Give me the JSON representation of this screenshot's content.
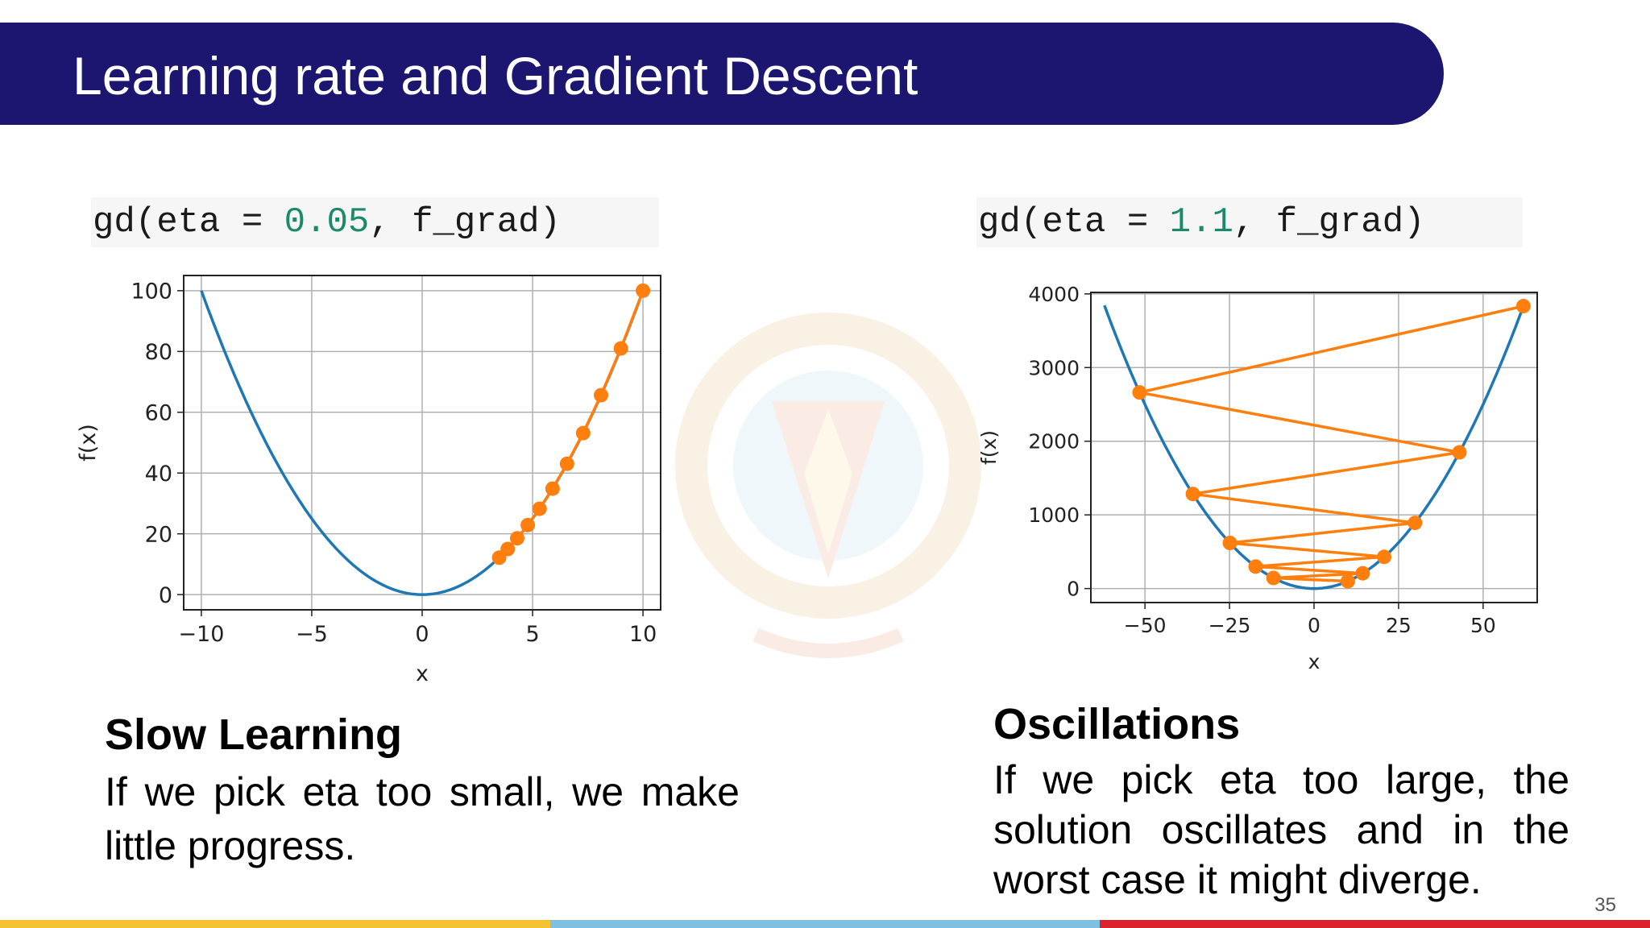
{
  "slide": {
    "title": "Learning rate and Gradient Descent",
    "page_number": "35",
    "left": {
      "code_prefix": "gd(eta = ",
      "code_value": "0.05",
      "code_suffix": ", f_grad)",
      "heading": "Slow Learning",
      "body": "If we pick eta too small, we make little progress."
    },
    "right": {
      "code_prefix": "gd(eta = ",
      "code_value": "1.1",
      "code_suffix": ", f_grad)",
      "heading": "Oscillations",
      "body": "If we pick eta too large, the solution oscillates and in the worst case it might diverge."
    },
    "colors": {
      "title_bar": "#1d1670",
      "curve": "#1f77b4",
      "path": "#ff7f0e",
      "strip": [
        "#f5c232",
        "#7ec0e2",
        "#d9232a"
      ]
    }
  },
  "chart_data": [
    {
      "type": "line",
      "function": "f(x) = x^2",
      "xlabel": "x",
      "ylabel": "f(x)",
      "xlim": [
        -10.8,
        10.8
      ],
      "ylim": [
        -5,
        105
      ],
      "xticks": [
        -10,
        -5,
        0,
        5,
        10
      ],
      "xtick_labels": [
        "−10",
        "−5",
        "0",
        "5",
        "10"
      ],
      "yticks": [
        0,
        20,
        40,
        60,
        80,
        100
      ],
      "ytick_labels": [
        "0",
        "20",
        "40",
        "60",
        "80",
        "100"
      ],
      "grid": true,
      "series": [
        {
          "kind": "curve",
          "x_range": [
            -10,
            10
          ]
        },
        {
          "kind": "gd-path",
          "x": [
            10,
            9.0,
            8.1,
            7.29,
            6.561,
            5.9049,
            5.31441,
            4.782969,
            4.3046721,
            3.87420489,
            3.486784401
          ]
        }
      ]
    },
    {
      "type": "line",
      "function": "f(x) = x^2",
      "xlabel": "x",
      "ylabel": "f(x)",
      "xlim": [
        -66,
        66
      ],
      "ylim": [
        -190,
        4020
      ],
      "xticks": [
        -50,
        -25,
        0,
        25,
        50
      ],
      "xtick_labels": [
        "−50",
        "−25",
        "0",
        "25",
        "50"
      ],
      "yticks": [
        0,
        1000,
        2000,
        3000,
        4000
      ],
      "ytick_labels": [
        "0",
        "1000",
        "2000",
        "3000",
        "4000"
      ],
      "grid": true,
      "series": [
        {
          "kind": "curve",
          "x_range": [
            -62,
            62
          ]
        },
        {
          "kind": "gd-path",
          "x": [
            61.917364,
            -51.5978,
            42.998,
            -35.8318,
            29.8598,
            -24.8832,
            20.736,
            -17.28,
            14.4,
            -12,
            10
          ]
        }
      ]
    }
  ]
}
